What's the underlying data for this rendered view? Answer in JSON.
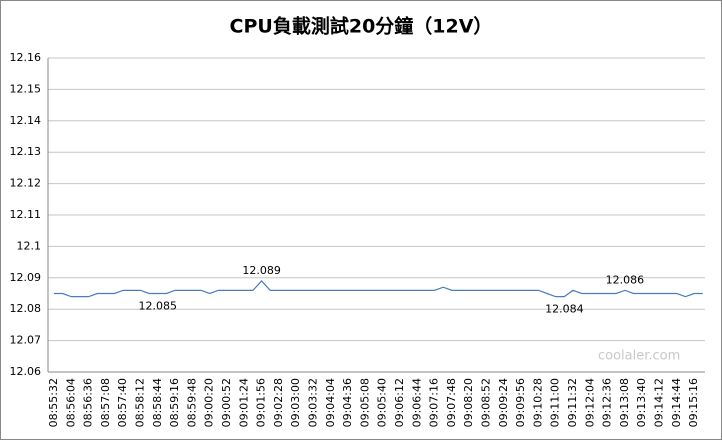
{
  "chart_data": {
    "type": "line",
    "title": "CPU負載測試20分鐘（12V）",
    "categories": [
      "08:55:32",
      null,
      "08:56:04",
      null,
      "08:56:36",
      null,
      "08:57:08",
      null,
      "08:57:40",
      null,
      "08:58:12",
      null,
      "08:58:44",
      null,
      "08:59:16",
      null,
      "08:59:48",
      null,
      "09:00:20",
      null,
      "09:00:52",
      null,
      "09:01:24",
      null,
      "09:01:56",
      null,
      "09:02:28",
      null,
      "09:03:00",
      null,
      "09:03:32",
      null,
      "09:04:04",
      null,
      "09:04:36",
      null,
      "09:05:08",
      null,
      "09:05:40",
      null,
      "09:06:12",
      null,
      "09:06:44",
      null,
      "09:07:16",
      null,
      "09:07:48",
      null,
      "09:08:20",
      null,
      "09:08:52",
      null,
      "09:09:24",
      null,
      "09:09:56",
      null,
      "09:10:28",
      null,
      "09:11:00",
      null,
      "09:11:32",
      null,
      "09:12:04",
      null,
      "09:12:36",
      null,
      "09:13:08",
      null,
      "09:13:40",
      null,
      "09:14:12",
      null,
      "09:14:44",
      null,
      "09:15:16",
      null
    ],
    "values": [
      12.085,
      12.085,
      12.084,
      12.084,
      12.084,
      12.085,
      12.085,
      12.085,
      12.086,
      12.086,
      12.086,
      12.085,
      12.085,
      12.085,
      12.086,
      12.086,
      12.086,
      12.086,
      12.085,
      12.086,
      12.086,
      12.086,
      12.086,
      12.086,
      12.089,
      12.086,
      12.086,
      12.086,
      12.086,
      12.086,
      12.086,
      12.086,
      12.086,
      12.086,
      12.086,
      12.086,
      12.086,
      12.086,
      12.086,
      12.086,
      12.086,
      12.086,
      12.086,
      12.086,
      12.086,
      12.087,
      12.086,
      12.086,
      12.086,
      12.086,
      12.086,
      12.086,
      12.086,
      12.086,
      12.086,
      12.086,
      12.086,
      12.085,
      12.084,
      12.084,
      12.086,
      12.085,
      12.085,
      12.085,
      12.085,
      12.085,
      12.086,
      12.085,
      12.085,
      12.085,
      12.085,
      12.085,
      12.085,
      12.084,
      12.085,
      12.085
    ],
    "value_labels": [
      null,
      null,
      null,
      null,
      null,
      null,
      null,
      null,
      null,
      null,
      null,
      null,
      "12.085",
      null,
      null,
      null,
      null,
      null,
      null,
      null,
      null,
      null,
      null,
      null,
      "12.089",
      null,
      null,
      null,
      null,
      null,
      null,
      null,
      null,
      null,
      null,
      null,
      null,
      null,
      null,
      null,
      null,
      null,
      null,
      null,
      null,
      null,
      null,
      null,
      null,
      null,
      null,
      null,
      null,
      null,
      null,
      null,
      null,
      null,
      null,
      "12.084",
      null,
      null,
      null,
      null,
      null,
      null,
      "12.086",
      null,
      null,
      null,
      null,
      null,
      null,
      null,
      null,
      null
    ],
    "color": "#4a7ebb",
    "ylim": [
      12.06,
      12.16
    ],
    "yticks": [
      12.06,
      12.07,
      12.08,
      12.09,
      12.1,
      12.11,
      12.12,
      12.13,
      12.14,
      12.15,
      12.16
    ],
    "grid": true,
    "watermark": "coolaler.com"
  }
}
